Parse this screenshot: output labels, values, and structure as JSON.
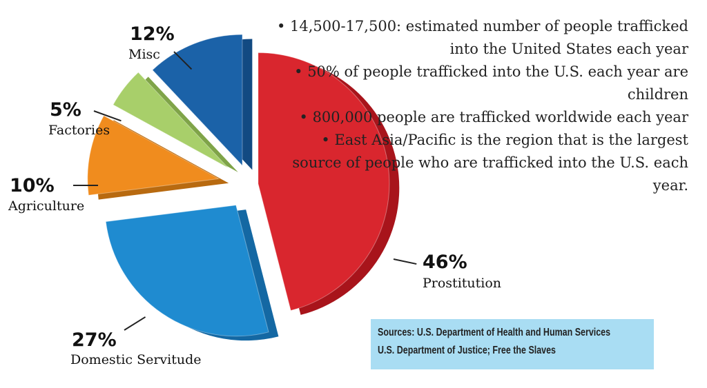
{
  "chart_data": {
    "type": "pie",
    "style": "exploded 3d",
    "slices": [
      {
        "label": "Prostitution",
        "value": 46,
        "value_label": "46%",
        "color": "#d9262e",
        "side": "#a8141b"
      },
      {
        "label": "Domestic Servitude",
        "value": 27,
        "value_label": "27%",
        "color": "#1f8bd0",
        "side": "#1468a3"
      },
      {
        "label": "Agriculture",
        "value": 10,
        "value_label": "10%",
        "color": "#f08c1e",
        "side": "#b86a10"
      },
      {
        "label": "Factories",
        "value": 5,
        "value_label": "5%",
        "color": "#a8cf6a",
        "side": "#7fa448"
      },
      {
        "label": "Misc",
        "value": 12,
        "value_label": "12%",
        "color": "#1b62a8",
        "side": "#124a82"
      }
    ]
  },
  "facts": [
    "14,500-17,500: estimated number of people trafficked into the United States each year",
    "50% of people trafficked into the U.S. each year are children",
    "800,000 people are trafficked worldwide each year",
    "East Asia/Pacific is the region that is the largest source of people who are trafficked into the U.S. each year."
  ],
  "sources": {
    "line1": "Sources:  U.S. Department of Health and Human Services",
    "line2": "U.S. Department of Justice; Free the Slaves"
  }
}
